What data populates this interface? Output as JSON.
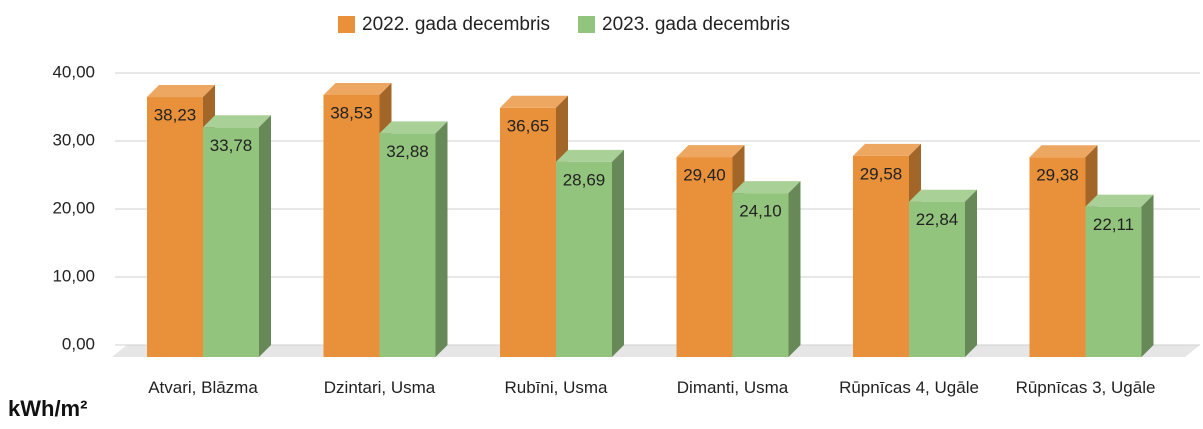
{
  "chart_data": {
    "type": "bar3d",
    "categories": [
      "Atvari, Blāzma",
      "Dzintari, Usma",
      "Rubīni, Usma",
      "Dimanti, Usma",
      "Rūpnīcas 4, Ugāle",
      "Rūpnīcas 3, Ugāle"
    ],
    "series": [
      {
        "name": "2022. gada decembris",
        "color": "#e8913a",
        "values": [
          38.23,
          38.53,
          36.65,
          29.4,
          29.58,
          29.38
        ],
        "value_labels": [
          "38,23",
          "38,53",
          "36,65",
          "29,40",
          "29,58",
          "29,38"
        ]
      },
      {
        "name": "2023. gada decembris",
        "color": "#93c47d",
        "values": [
          33.78,
          32.88,
          28.69,
          24.1,
          22.84,
          22.11
        ],
        "value_labels": [
          "33,78",
          "32,88",
          "28,69",
          "24,10",
          "22,84",
          "22,11"
        ]
      }
    ],
    "y_axis_label": "kWh/m²",
    "ylim": [
      0,
      40
    ],
    "yticks": [
      {
        "value": 0,
        "label": "0,00"
      },
      {
        "value": 10,
        "label": "10,00"
      },
      {
        "value": 20,
        "label": "20,00"
      },
      {
        "value": 30,
        "label": "30,00"
      },
      {
        "value": 40,
        "label": "40,00"
      }
    ],
    "grid": true,
    "legend": "top"
  }
}
